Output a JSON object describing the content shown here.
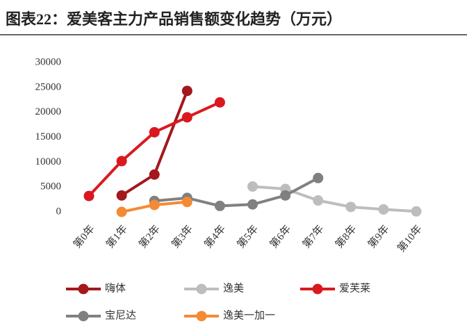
{
  "chart_data": {
    "type": "line",
    "title": "图表22：爱美客主力产品销售额变化趋势（万元）",
    "categories": [
      "第0年",
      "第1年",
      "第2年",
      "第3年",
      "第4年",
      "第5年",
      "第6年",
      "第7年",
      "第8年",
      "第9年",
      "第10年"
    ],
    "series": [
      {
        "name": "嗨体",
        "color": "#a3181c",
        "values": [
          null,
          3300,
          7500,
          24300,
          null,
          null,
          null,
          null,
          null,
          null,
          null
        ]
      },
      {
        "name": "逸美",
        "color": "#bdbdbd",
        "values": [
          null,
          null,
          null,
          null,
          null,
          5100,
          4600,
          2300,
          1000,
          500,
          100
        ]
      },
      {
        "name": "爱芙莱",
        "color": "#d9191f",
        "values": [
          3200,
          10200,
          16000,
          19000,
          22000,
          null,
          null,
          null,
          null,
          null,
          null
        ]
      },
      {
        "name": "宝尼达",
        "color": "#808080",
        "values": [
          null,
          null,
          2200,
          2800,
          1200,
          1500,
          3300,
          6800,
          null,
          null,
          null
        ]
      },
      {
        "name": "逸美一加一",
        "color": "#f58a35",
        "values": [
          null,
          0,
          1400,
          2000,
          null,
          null,
          null,
          null,
          null,
          null,
          null
        ]
      }
    ],
    "ylim": [
      0,
      30000
    ],
    "yticks": [
      0,
      5000,
      10000,
      15000,
      20000,
      25000,
      30000
    ],
    "grid": false,
    "legend": "bottom"
  }
}
